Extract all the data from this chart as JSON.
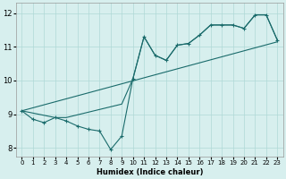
{
  "xlabel": "Humidex (Indice chaleur)",
  "xlim": [
    -0.5,
    23.5
  ],
  "ylim": [
    7.75,
    12.3
  ],
  "yticks": [
    8,
    9,
    10,
    11,
    12
  ],
  "xticks": [
    0,
    1,
    2,
    3,
    4,
    5,
    6,
    7,
    8,
    9,
    10,
    11,
    12,
    13,
    14,
    15,
    16,
    17,
    18,
    19,
    20,
    21,
    22,
    23
  ],
  "background_color": "#d7efee",
  "grid_color": "#afd9d6",
  "line_color": "#1a6b6b",
  "series": {
    "line1_zigzag": {
      "x": [
        0,
        1,
        2,
        3,
        4,
        5,
        6,
        7,
        8,
        9,
        10,
        11,
        12,
        13,
        14,
        15,
        16,
        17,
        18,
        19,
        20,
        21,
        22,
        23
      ],
      "y": [
        9.1,
        8.85,
        8.75,
        8.9,
        8.8,
        8.65,
        8.55,
        8.5,
        7.95,
        8.35,
        10.05,
        11.3,
        10.75,
        10.6,
        11.05,
        11.1,
        11.35,
        11.65,
        11.65,
        11.65,
        11.55,
        11.95,
        11.95,
        11.2
      ]
    },
    "line2_smooth": {
      "x": [
        0,
        3,
        4,
        9,
        10,
        11,
        12,
        13,
        14,
        15,
        16,
        17,
        18,
        19,
        20,
        21,
        22,
        23
      ],
      "y": [
        9.1,
        8.9,
        8.9,
        9.3,
        10.05,
        11.3,
        10.75,
        10.6,
        11.05,
        11.1,
        11.35,
        11.65,
        11.65,
        11.65,
        11.55,
        11.95,
        11.95,
        11.2
      ]
    },
    "line3_trend": {
      "x": [
        0,
        23
      ],
      "y": [
        9.1,
        11.15
      ]
    }
  }
}
